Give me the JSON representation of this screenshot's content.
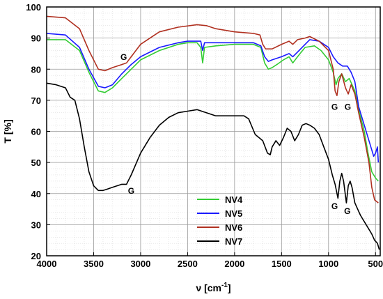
{
  "chart_data": {
    "type": "line",
    "xlabel": "ν [cm",
    "xlabel_sup": "-1",
    "xlabel_end": "]",
    "ylabel": "T [%]",
    "xlim": [
      4000,
      450
    ],
    "ylim": [
      20,
      100
    ],
    "x_reversed": true,
    "grid": true,
    "legend_position": "lower-center",
    "x_ticks": [
      "4000",
      "3500",
      "3000",
      "2500",
      "2000",
      "1500",
      "1000",
      "500"
    ],
    "x_tick_values": [
      4000,
      3500,
      3000,
      2500,
      2000,
      1500,
      1000,
      500
    ],
    "y_ticks": [
      "20",
      "30",
      "40",
      "50",
      "60",
      "70",
      "80",
      "90",
      "100"
    ],
    "y_tick_values": [
      20,
      30,
      40,
      50,
      60,
      70,
      80,
      90,
      100
    ],
    "series": [
      {
        "name": "NV4",
        "color": "#33cc33",
        "points": [
          [
            4000,
            89.5
          ],
          [
            3800,
            89.5
          ],
          [
            3650,
            86
          ],
          [
            3550,
            79
          ],
          [
            3450,
            73
          ],
          [
            3380,
            72.5
          ],
          [
            3300,
            74
          ],
          [
            3200,
            77
          ],
          [
            3100,
            80
          ],
          [
            3000,
            83
          ],
          [
            2800,
            86
          ],
          [
            2600,
            88
          ],
          [
            2500,
            88.5
          ],
          [
            2400,
            88.5
          ],
          [
            2360,
            87
          ],
          [
            2340,
            82
          ],
          [
            2320,
            87
          ],
          [
            2200,
            87.5
          ],
          [
            2000,
            88
          ],
          [
            1800,
            88
          ],
          [
            1720,
            87
          ],
          [
            1680,
            82
          ],
          [
            1640,
            80
          ],
          [
            1600,
            80.5
          ],
          [
            1550,
            81.5
          ],
          [
            1480,
            83
          ],
          [
            1420,
            84
          ],
          [
            1380,
            82
          ],
          [
            1330,
            84
          ],
          [
            1250,
            87
          ],
          [
            1150,
            87.5
          ],
          [
            1080,
            86
          ],
          [
            1000,
            83
          ],
          [
            950,
            79
          ],
          [
            920,
            75
          ],
          [
            900,
            77
          ],
          [
            860,
            78.5
          ],
          [
            820,
            76
          ],
          [
            780,
            77
          ],
          [
            720,
            73
          ],
          [
            680,
            67
          ],
          [
            620,
            60
          ],
          [
            580,
            53
          ],
          [
            540,
            47
          ],
          [
            500,
            45
          ],
          [
            470,
            44
          ]
        ]
      },
      {
        "name": "NV5",
        "color": "#1a1aff",
        "points": [
          [
            4000,
            91.5
          ],
          [
            3800,
            91
          ],
          [
            3650,
            87
          ],
          [
            3550,
            80
          ],
          [
            3450,
            74.5
          ],
          [
            3380,
            74
          ],
          [
            3300,
            75
          ],
          [
            3200,
            78.5
          ],
          [
            3100,
            81.5
          ],
          [
            3000,
            84
          ],
          [
            2800,
            87
          ],
          [
            2600,
            88.5
          ],
          [
            2500,
            89
          ],
          [
            2360,
            89
          ],
          [
            2340,
            86
          ],
          [
            2320,
            88.5
          ],
          [
            2200,
            88.5
          ],
          [
            2000,
            88.5
          ],
          [
            1800,
            88.5
          ],
          [
            1720,
            87.5
          ],
          [
            1680,
            84
          ],
          [
            1640,
            82.5
          ],
          [
            1600,
            83
          ],
          [
            1500,
            84
          ],
          [
            1420,
            85
          ],
          [
            1380,
            84
          ],
          [
            1330,
            85.5
          ],
          [
            1200,
            89.5
          ],
          [
            1100,
            89
          ],
          [
            1000,
            87
          ],
          [
            950,
            84
          ],
          [
            900,
            82
          ],
          [
            850,
            81
          ],
          [
            800,
            81
          ],
          [
            760,
            79
          ],
          [
            720,
            76
          ],
          [
            680,
            68
          ],
          [
            620,
            62
          ],
          [
            560,
            56
          ],
          [
            520,
            52
          ],
          [
            500,
            53
          ],
          [
            480,
            55
          ],
          [
            470,
            50
          ]
        ]
      },
      {
        "name": "NV6",
        "color": "#b03020",
        "points": [
          [
            4000,
            97
          ],
          [
            3800,
            96.5
          ],
          [
            3650,
            93
          ],
          [
            3550,
            86
          ],
          [
            3450,
            80
          ],
          [
            3380,
            79.5
          ],
          [
            3300,
            80.5
          ],
          [
            3200,
            81.5
          ],
          [
            3150,
            82
          ],
          [
            3100,
            84
          ],
          [
            3000,
            88
          ],
          [
            2800,
            92
          ],
          [
            2600,
            93.5
          ],
          [
            2400,
            94.3
          ],
          [
            2300,
            94
          ],
          [
            2200,
            93
          ],
          [
            2000,
            92
          ],
          [
            1800,
            91.5
          ],
          [
            1730,
            91
          ],
          [
            1700,
            88
          ],
          [
            1670,
            86.5
          ],
          [
            1600,
            86.5
          ],
          [
            1500,
            88
          ],
          [
            1420,
            89
          ],
          [
            1380,
            88
          ],
          [
            1330,
            89.5
          ],
          [
            1250,
            90
          ],
          [
            1200,
            90.5
          ],
          [
            1100,
            89
          ],
          [
            1000,
            86
          ],
          [
            950,
            80
          ],
          [
            930,
            73
          ],
          [
            910,
            71.5
          ],
          [
            890,
            76
          ],
          [
            860,
            78.5
          ],
          [
            820,
            74
          ],
          [
            790,
            72
          ],
          [
            760,
            75
          ],
          [
            720,
            72
          ],
          [
            680,
            66
          ],
          [
            620,
            58
          ],
          [
            570,
            50
          ],
          [
            540,
            42
          ],
          [
            510,
            38
          ],
          [
            470,
            37
          ]
        ]
      },
      {
        "name": "NV7",
        "color": "#000000",
        "points": [
          [
            4000,
            75.5
          ],
          [
            3900,
            75
          ],
          [
            3800,
            74
          ],
          [
            3750,
            71
          ],
          [
            3700,
            70
          ],
          [
            3650,
            64
          ],
          [
            3600,
            55
          ],
          [
            3550,
            47
          ],
          [
            3500,
            42.5
          ],
          [
            3450,
            41
          ],
          [
            3400,
            41
          ],
          [
            3350,
            41.5
          ],
          [
            3300,
            42
          ],
          [
            3200,
            43
          ],
          [
            3150,
            43
          ],
          [
            3100,
            46
          ],
          [
            3000,
            53
          ],
          [
            2900,
            58
          ],
          [
            2800,
            62
          ],
          [
            2700,
            64.5
          ],
          [
            2600,
            66
          ],
          [
            2500,
            66.5
          ],
          [
            2400,
            67
          ],
          [
            2350,
            66.5
          ],
          [
            2300,
            66
          ],
          [
            2200,
            65
          ],
          [
            2100,
            65
          ],
          [
            2000,
            65
          ],
          [
            1900,
            65
          ],
          [
            1850,
            64
          ],
          [
            1780,
            59
          ],
          [
            1700,
            57
          ],
          [
            1650,
            53
          ],
          [
            1620,
            52.5
          ],
          [
            1600,
            55
          ],
          [
            1560,
            57
          ],
          [
            1520,
            55.5
          ],
          [
            1480,
            58
          ],
          [
            1440,
            61
          ],
          [
            1400,
            60
          ],
          [
            1360,
            57
          ],
          [
            1320,
            59
          ],
          [
            1280,
            62
          ],
          [
            1240,
            62.5
          ],
          [
            1200,
            62
          ],
          [
            1150,
            61
          ],
          [
            1100,
            59
          ],
          [
            1050,
            55
          ],
          [
            1000,
            51
          ],
          [
            960,
            46
          ],
          [
            930,
            43
          ],
          [
            900,
            38.5
          ],
          [
            880,
            44
          ],
          [
            860,
            46.5
          ],
          [
            840,
            44
          ],
          [
            810,
            37
          ],
          [
            790,
            42.5
          ],
          [
            770,
            44
          ],
          [
            750,
            42
          ],
          [
            720,
            37
          ],
          [
            690,
            35
          ],
          [
            660,
            33
          ],
          [
            620,
            31
          ],
          [
            580,
            29
          ],
          [
            540,
            27
          ],
          [
            510,
            25
          ],
          [
            480,
            24
          ],
          [
            460,
            22
          ]
        ]
      }
    ],
    "annotations": [
      {
        "text": "G",
        "x": 3180,
        "y": 83
      },
      {
        "text": "G",
        "x": 3100,
        "y": 40
      },
      {
        "text": "G",
        "x": 935,
        "y": 67
      },
      {
        "text": "G",
        "x": 795,
        "y": 67
      },
      {
        "text": "G",
        "x": 935,
        "y": 35
      },
      {
        "text": "G",
        "x": 800,
        "y": 33.5
      }
    ],
    "legend": [
      {
        "name": "NV4",
        "color": "#33cc33"
      },
      {
        "name": "NV5",
        "color": "#1a1aff"
      },
      {
        "name": "NV6",
        "color": "#b03020"
      },
      {
        "name": "NV7",
        "color": "#000000"
      }
    ]
  }
}
